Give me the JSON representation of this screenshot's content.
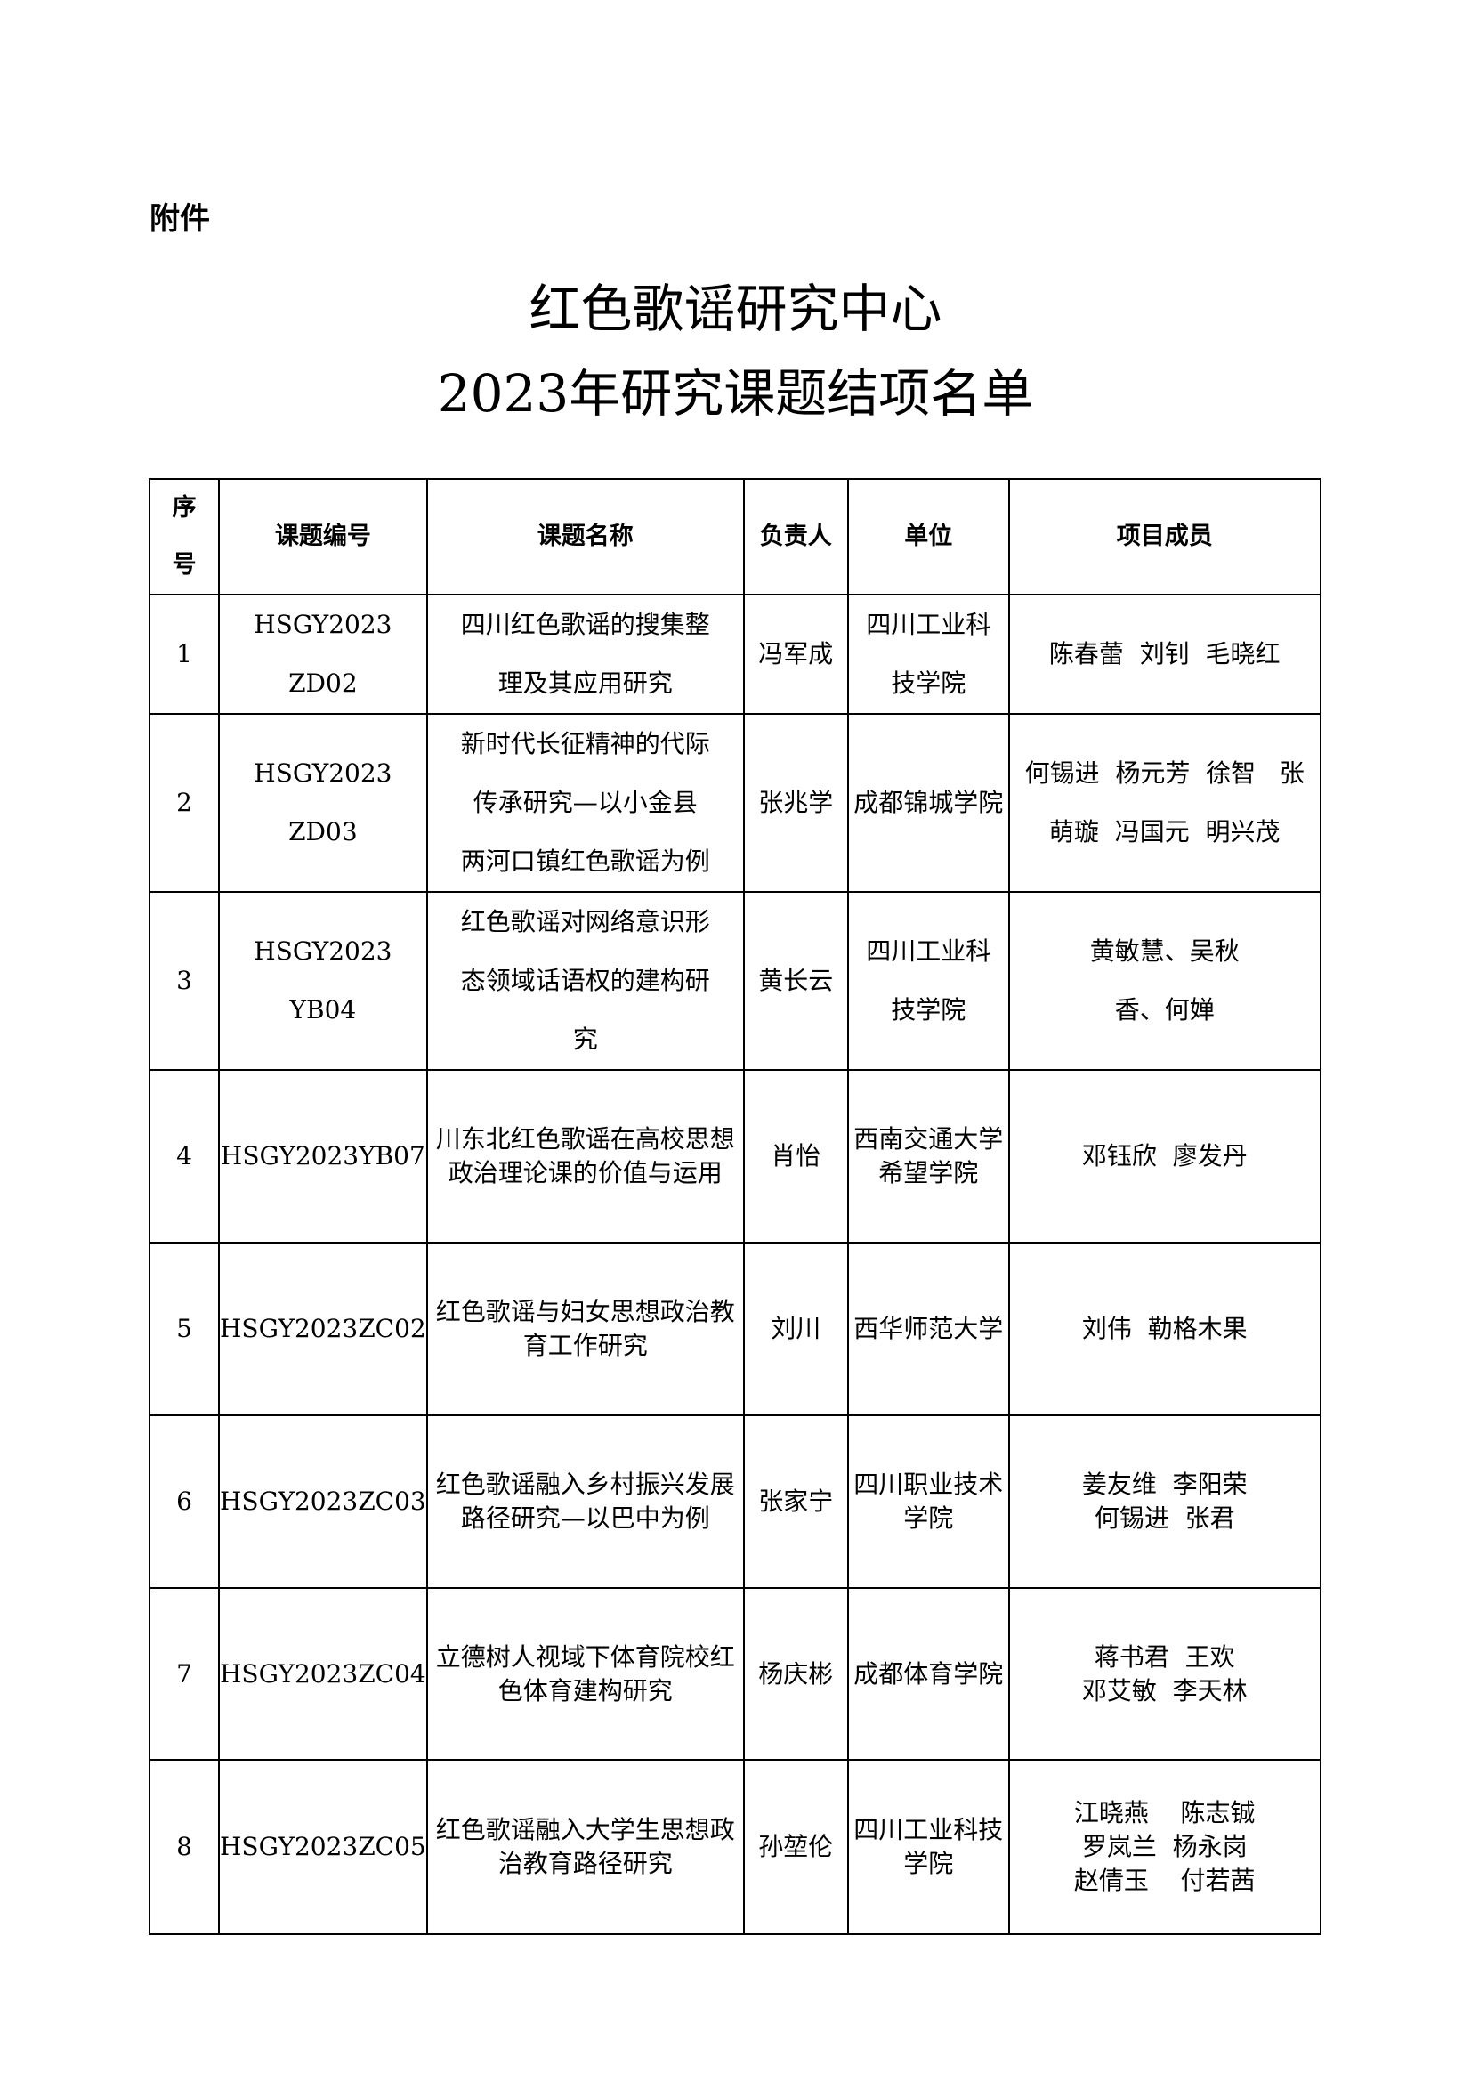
{
  "header": {
    "label": "附件",
    "title": [
      "红色歌谣研究中心",
      "2023年研究课题结项名单"
    ]
  },
  "table": {
    "columns": [
      [
        "序",
        "号"
      ],
      [
        "课题编号"
      ],
      [
        "课题名称"
      ],
      [
        "负责人"
      ],
      [
        "单位"
      ],
      [
        "项目成员"
      ]
    ],
    "rows": [
      [
        [
          "1"
        ],
        [
          "HSGY2023",
          "ZD02"
        ],
        [
          "四川红色歌谣的搜集整",
          "理及其应用研究"
        ],
        [
          "冯军成"
        ],
        [
          "四川工业科",
          "技学院"
        ],
        [
          "陈春蕾  刘钊  毛晓红"
        ]
      ],
      [
        [
          "2"
        ],
        [
          "HSGY2023",
          "ZD03"
        ],
        [
          "新时代长征精神的代际",
          "传承研究—以小金县",
          "两河口镇红色歌谣为例"
        ],
        [
          "张兆学"
        ],
        [
          "成都锦城学院"
        ],
        [
          "何锡进  杨元芳  徐智   张",
          "萌璇  冯国元  明兴茂"
        ]
      ],
      [
        [
          "3"
        ],
        [
          "HSGY2023",
          "YB04"
        ],
        [
          "红色歌谣对网络意识形",
          "态领域话语权的建构研",
          "究"
        ],
        [
          "黄长云"
        ],
        [
          "四川工业科",
          "技学院"
        ],
        [
          "黄敏慧、吴秋",
          "香、何婵"
        ]
      ],
      [
        [
          "4"
        ],
        [
          "HSGY2023YB07"
        ],
        [
          "川东北红色歌谣在高校思想",
          "政治理论课的价值与运用"
        ],
        [
          "肖怡"
        ],
        [
          "西南交通大学",
          "希望学院"
        ],
        [
          "邓钰欣  廖发丹"
        ]
      ],
      [
        [
          "5"
        ],
        [
          "HSGY2023ZC02"
        ],
        [
          "红色歌谣与妇女思想政治教",
          "育工作研究"
        ],
        [
          "刘川"
        ],
        [
          "西华师范大学"
        ],
        [
          "刘伟  勒格木果"
        ]
      ],
      [
        [
          "6"
        ],
        [
          "HSGY2023ZC03"
        ],
        [
          "红色歌谣融入乡村振兴发展",
          "路径研究—以巴中为例"
        ],
        [
          "张家宁"
        ],
        [
          "四川职业技术",
          "学院"
        ],
        [
          "姜友维  李阳荣",
          "何锡进  张君"
        ]
      ],
      [
        [
          "7"
        ],
        [
          "HSGY2023ZC04"
        ],
        [
          "立德树人视域下体育院校红",
          "色体育建构研究"
        ],
        [
          "杨庆彬"
        ],
        [
          "成都体育学院"
        ],
        [
          "蒋书君  王欢",
          "邓艾敏  李天林"
        ]
      ],
      [
        [
          "8"
        ],
        [
          "HSGY2023ZC05"
        ],
        [
          "红色歌谣融入大学生思想政",
          "治教育路径研究"
        ],
        [
          "孙堃伦"
        ],
        [
          "四川工业科技",
          "学院"
        ],
        [
          "江晓燕    陈志铖",
          "罗岚兰  杨永岗",
          "赵倩玉    付若茜"
        ]
      ]
    ]
  }
}
